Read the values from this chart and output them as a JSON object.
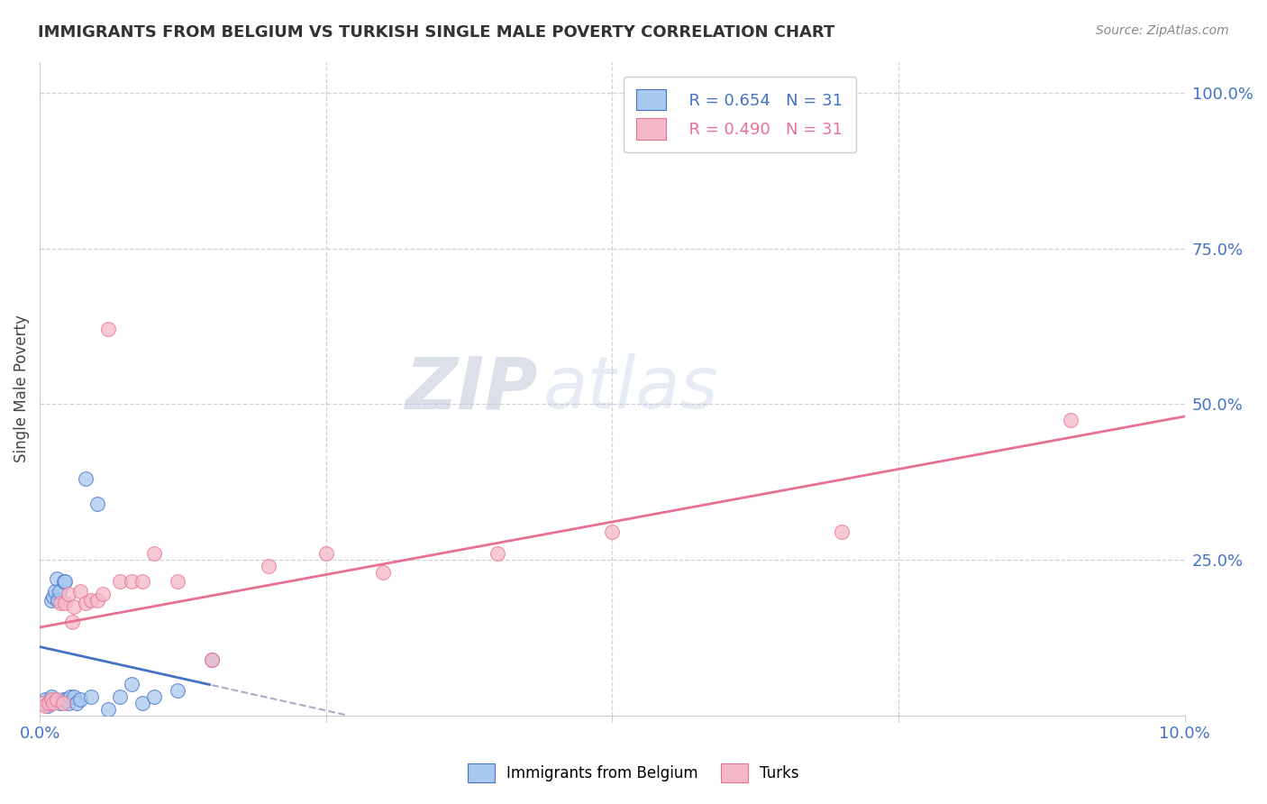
{
  "title": "IMMIGRANTS FROM BELGIUM VS TURKISH SINGLE MALE POVERTY CORRELATION CHART",
  "source": "Source: ZipAtlas.com",
  "ylabel": "Single Male Poverty",
  "legend_blue_r": "R = 0.654",
  "legend_blue_n": "N = 31",
  "legend_pink_r": "R = 0.490",
  "legend_pink_n": "N = 31",
  "legend_label_blue": "Immigrants from Belgium",
  "legend_label_pink": "Turks",
  "blue_color": "#a8c8f0",
  "pink_color": "#f5b8c8",
  "blue_line_color": "#4472c4",
  "pink_line_color": "#e87090",
  "watermark_zip": "ZIP",
  "watermark_atlas": "atlas",
  "xlim": [
    0.0,
    0.1
  ],
  "ylim": [
    0.0,
    1.05
  ],
  "blue_scatter_x": [
    0.0003,
    0.0005,
    0.0007,
    0.0008,
    0.001,
    0.001,
    0.0012,
    0.0013,
    0.0015,
    0.0016,
    0.0017,
    0.0018,
    0.002,
    0.0021,
    0.0022,
    0.0023,
    0.0025,
    0.0027,
    0.003,
    0.0032,
    0.0035,
    0.004,
    0.0045,
    0.005,
    0.006,
    0.007,
    0.008,
    0.009,
    0.01,
    0.012,
    0.015
  ],
  "blue_scatter_y": [
    0.02,
    0.025,
    0.015,
    0.02,
    0.03,
    0.185,
    0.19,
    0.2,
    0.22,
    0.185,
    0.2,
    0.02,
    0.025,
    0.215,
    0.215,
    0.025,
    0.02,
    0.03,
    0.03,
    0.02,
    0.025,
    0.38,
    0.03,
    0.34,
    0.01,
    0.03,
    0.05,
    0.02,
    0.03,
    0.04,
    0.09
  ],
  "pink_scatter_x": [
    0.0003,
    0.0005,
    0.0008,
    0.001,
    0.0012,
    0.0015,
    0.0018,
    0.002,
    0.0022,
    0.0025,
    0.0028,
    0.003,
    0.0035,
    0.004,
    0.0045,
    0.005,
    0.0055,
    0.006,
    0.007,
    0.008,
    0.009,
    0.01,
    0.012,
    0.015,
    0.02,
    0.025,
    0.03,
    0.04,
    0.05,
    0.07,
    0.09
  ],
  "pink_scatter_y": [
    0.02,
    0.015,
    0.02,
    0.025,
    0.02,
    0.025,
    0.18,
    0.02,
    0.18,
    0.195,
    0.15,
    0.175,
    0.2,
    0.18,
    0.185,
    0.185,
    0.195,
    0.62,
    0.215,
    0.215,
    0.215,
    0.26,
    0.215,
    0.09,
    0.24,
    0.26,
    0.23,
    0.26,
    0.295,
    0.295,
    0.475
  ],
  "xticks": [
    0.0,
    0.025,
    0.05,
    0.075,
    0.1
  ],
  "xtick_labels": [
    "0.0%",
    "",
    "",
    "",
    "10.0%"
  ],
  "yticks_right": [
    0.25,
    0.5,
    0.75,
    1.0
  ],
  "ytick_labels_right": [
    "25.0%",
    "50.0%",
    "75.0%",
    "100.0%"
  ]
}
